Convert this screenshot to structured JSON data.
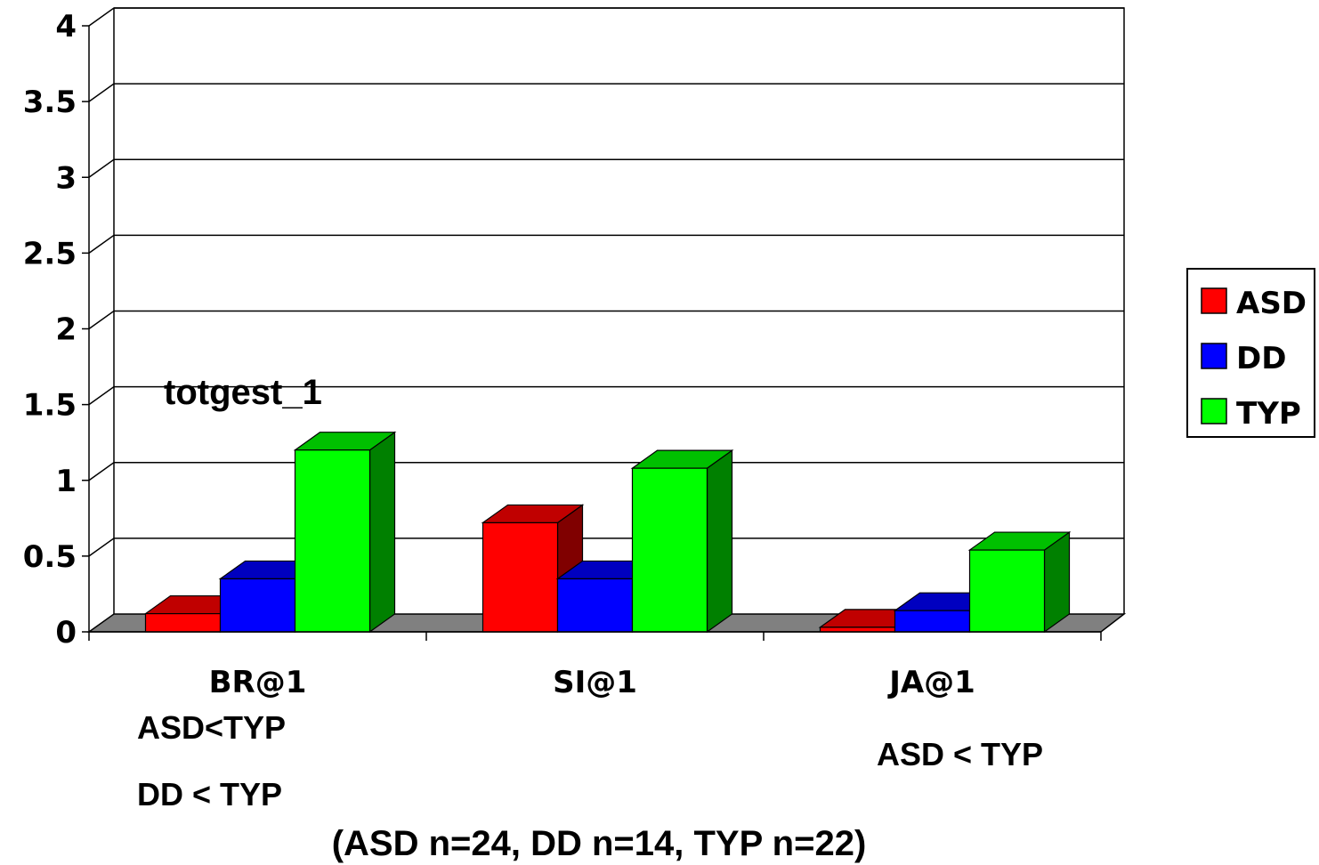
{
  "chart_data": {
    "type": "bar",
    "title": "totgest_1",
    "categories": [
      "BR@1",
      "SI@1",
      "JA@1"
    ],
    "series": [
      {
        "name": "ASD",
        "values": [
          0.12,
          0.72,
          0.03
        ],
        "color": "#ff0000",
        "side_color": "#800000",
        "top_color": "#c00000"
      },
      {
        "name": "DD",
        "values": [
          0.35,
          0.35,
          0.14
        ],
        "color": "#0000ff",
        "side_color": "#000080",
        "top_color": "#0000c0"
      },
      {
        "name": "TYP",
        "values": [
          1.2,
          1.08,
          0.54
        ],
        "color": "#00ff00",
        "side_color": "#008000",
        "top_color": "#00c000"
      }
    ],
    "ylim": [
      0,
      4
    ],
    "yticks": [
      "0",
      "0.5",
      "1",
      "1.5",
      "2",
      "2.5",
      "3",
      "3.5",
      "4"
    ],
    "grid": true,
    "legend": "right",
    "annotations": [
      "ASD<TYP",
      "DD < TYP",
      "ASD < TYP"
    ],
    "footnote": "(ASD n=24, DD n=14, TYP n=22)"
  }
}
